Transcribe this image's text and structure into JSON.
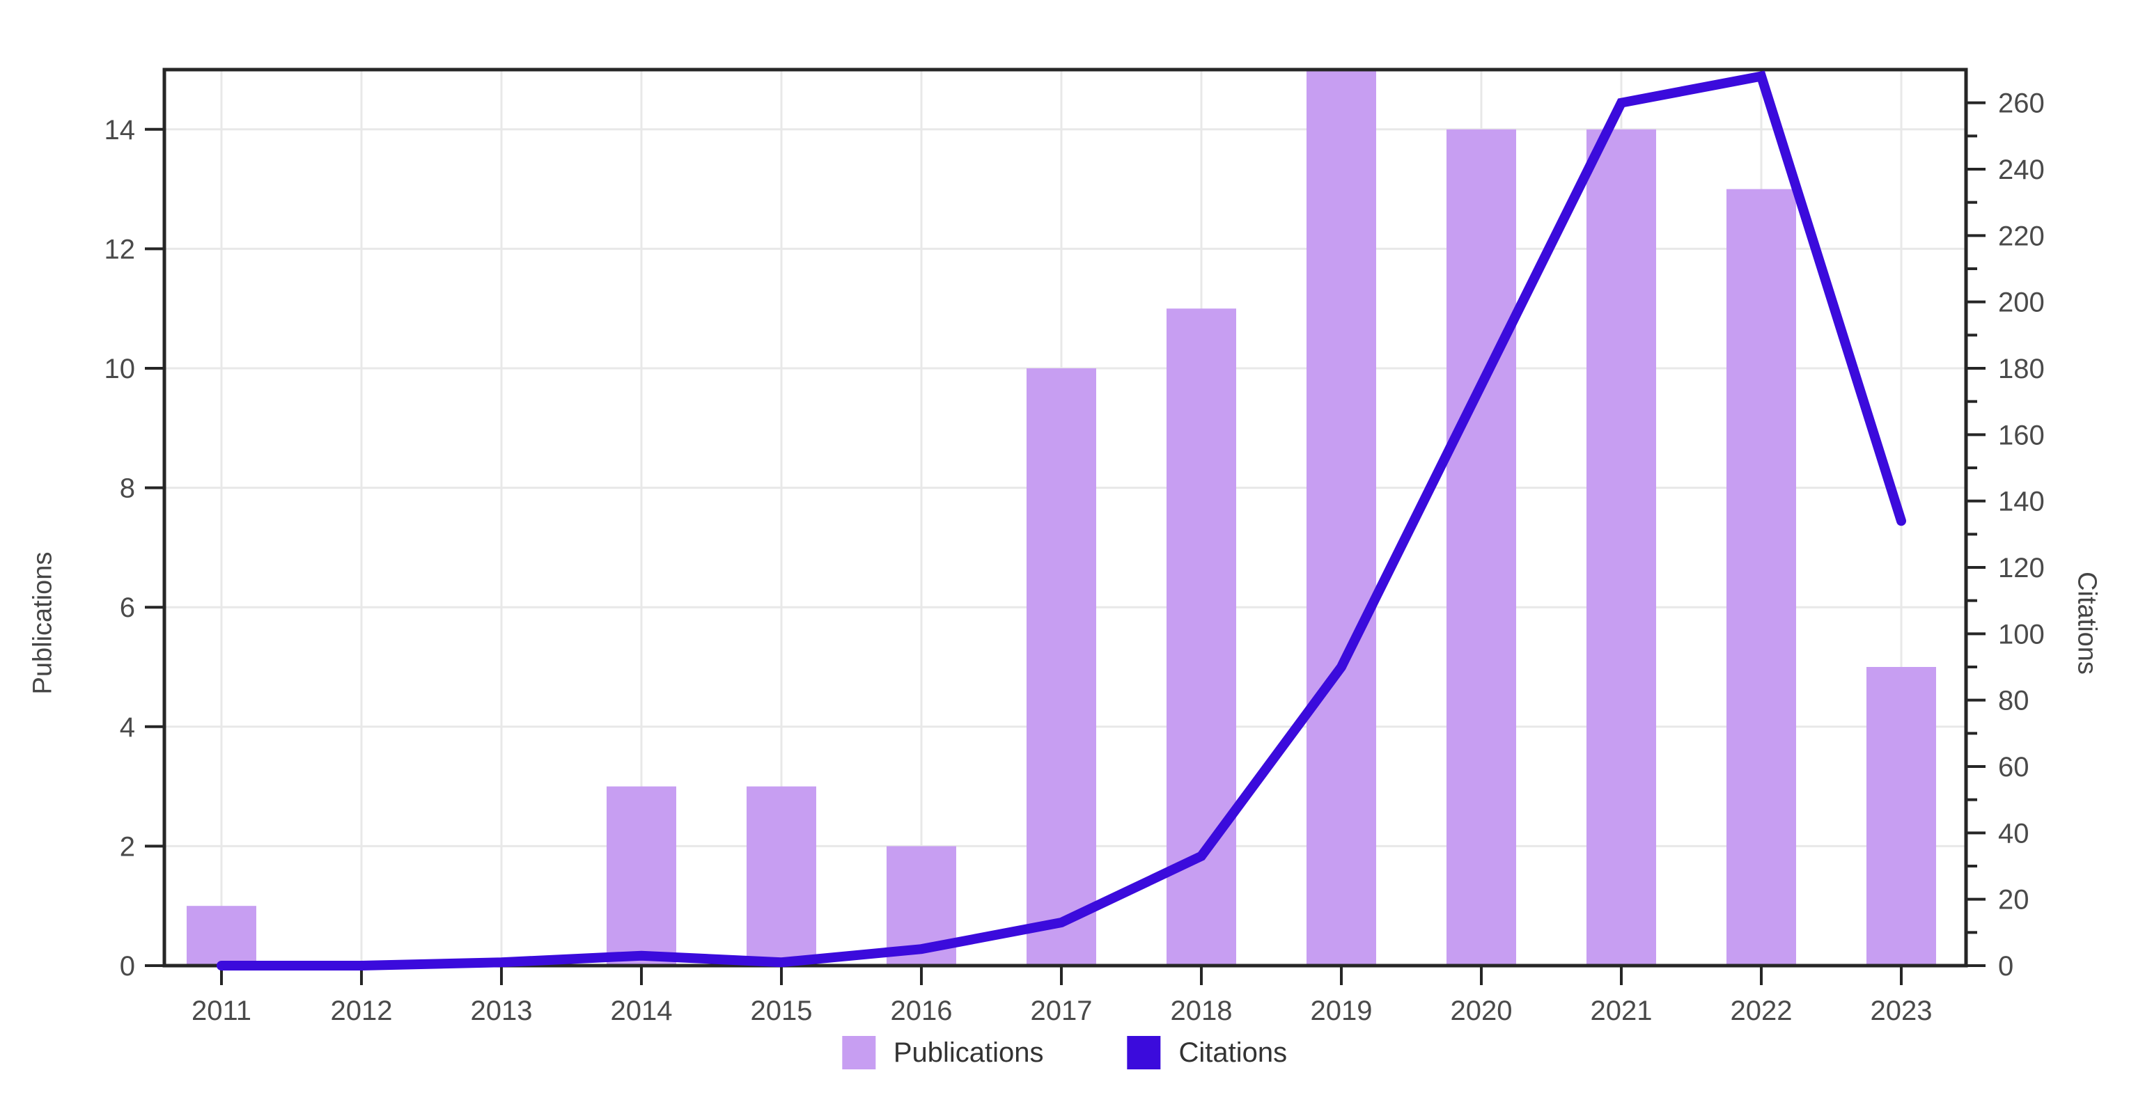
{
  "chart_data": {
    "type": "bar",
    "title": "",
    "categories": [
      "2011",
      "2012",
      "2013",
      "2014",
      "2015",
      "2016",
      "2017",
      "2018",
      "2019",
      "2020",
      "2021",
      "2022",
      "2023"
    ],
    "series": [
      {
        "name": "Publications",
        "type": "bar",
        "axis": "left",
        "color": "#C79EF2",
        "values": [
          1,
          0,
          0,
          3,
          3,
          2,
          10,
          11,
          15,
          14,
          14,
          13,
          5
        ]
      },
      {
        "name": "Citations",
        "type": "line",
        "axis": "right",
        "color": "#3B0BDC",
        "values": [
          0,
          0,
          1,
          3,
          1,
          5,
          13,
          33,
          90,
          175,
          260,
          268,
          134
        ]
      }
    ],
    "left_axis": {
      "label": "Publications",
      "min": 0,
      "max": 15,
      "tick_step": 2,
      "tick_labels": [
        "0",
        "2",
        "4",
        "6",
        "8",
        "10",
        "12",
        "14"
      ]
    },
    "right_axis": {
      "label": "Citations",
      "min": 0,
      "max": 270,
      "major_tick_step": 20,
      "minor_tick_step": 10,
      "tick_labels": [
        "0",
        "20",
        "40",
        "60",
        "80",
        "100",
        "120",
        "140",
        "160",
        "180",
        "200",
        "220",
        "240",
        "260"
      ]
    },
    "x_axis": {
      "tick_labels": [
        "2011",
        "2012",
        "2013",
        "2014",
        "2015",
        "2016",
        "2017",
        "2018",
        "2019",
        "2020",
        "2021",
        "2022",
        "2023"
      ]
    },
    "grid": true,
    "legend_position": "bottom"
  },
  "style": {
    "background": "#ffffff",
    "axis_color": "#262626",
    "grid_color": "#e8e8e8",
    "tick_label_color": "#4a4a4a",
    "axis_title_color": "#454545",
    "legend_label_color": "#333333"
  }
}
